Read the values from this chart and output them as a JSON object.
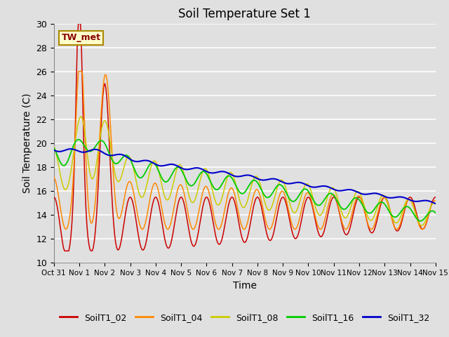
{
  "title": "Soil Temperature Set 1",
  "xlabel": "Time",
  "ylabel": "Soil Temperature (C)",
  "ylim": [
    10,
    30
  ],
  "yticks": [
    10,
    12,
    14,
    16,
    18,
    20,
    22,
    24,
    26,
    28,
    30
  ],
  "background_color": "#e0e0e0",
  "plot_bg_color": "#e0e0e0",
  "grid_color": "#ffffff",
  "series_colors": {
    "SoilT1_02": "#cc0000",
    "SoilT1_04": "#ff8800",
    "SoilT1_08": "#cccc00",
    "SoilT1_16": "#00cc00",
    "SoilT1_32": "#0000cc"
  },
  "annotation_text": "TW_met",
  "x_tick_labels": [
    "Oct 31",
    "Nov 1",
    "Nov 2",
    "Nov 3",
    "Nov 4",
    "Nov 5",
    "Nov 6",
    "Nov 7",
    "Nov 8",
    "Nov 9",
    "Nov 10",
    "Nov 11",
    "Nov 12",
    "Nov 13",
    "Nov 14",
    "Nov 15"
  ],
  "x_tick_positions": [
    0,
    1,
    2,
    3,
    4,
    5,
    6,
    7,
    8,
    9,
    10,
    11,
    12,
    13,
    14,
    15
  ]
}
